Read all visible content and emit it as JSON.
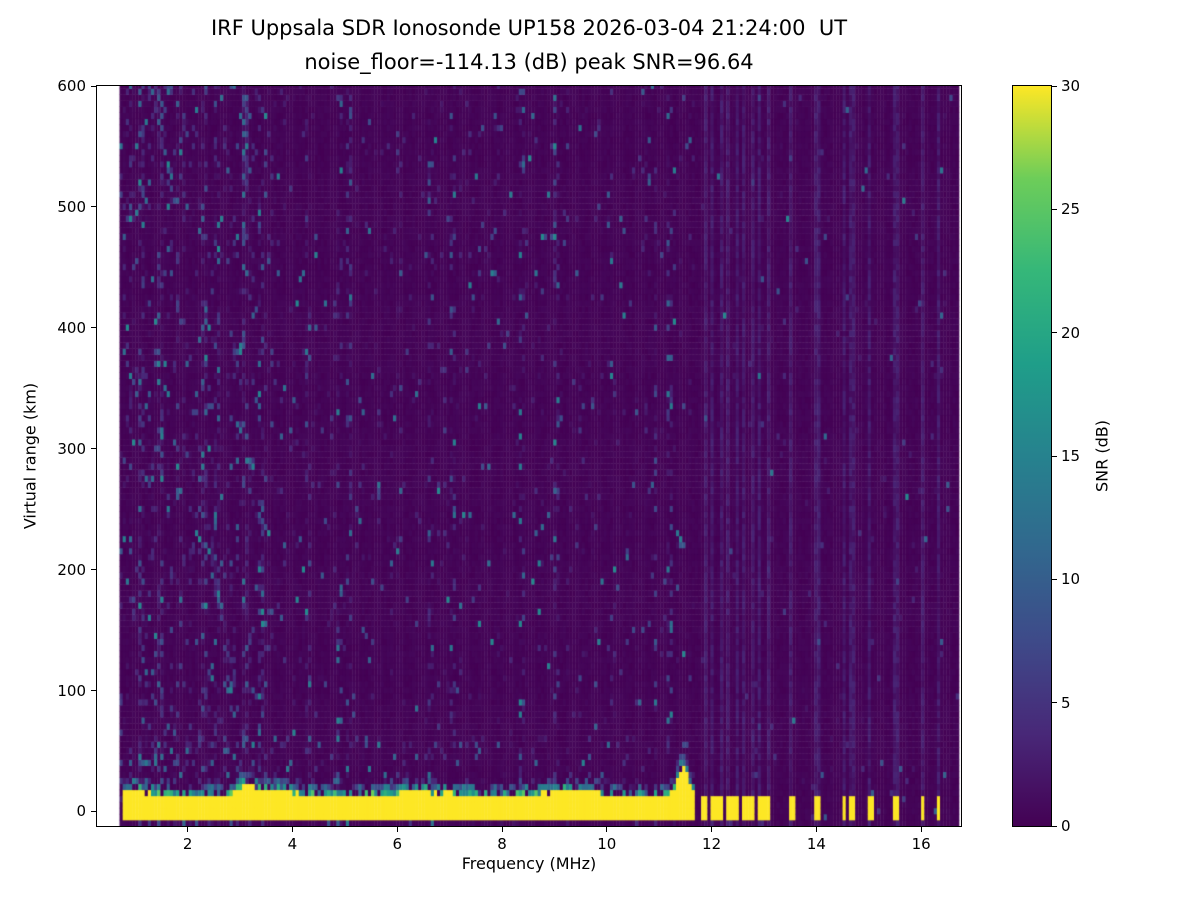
{
  "title": "IRF Uppsala SDR Ionosonde UP158 2026-03-04 21:24:00  UT",
  "subtitle": "noise_floor=-114.13 (dB) peak SNR=96.64",
  "station": "IRF Uppsala SDR Ionosonde UP158",
  "timestamp_ut": "2026-03-04 21:24:00",
  "noise_floor_db": -114.13,
  "peak_snr_db": 96.64,
  "chart_data": {
    "type": "heatmap",
    "title": "IRF Uppsala SDR Ionosonde UP158 2026-03-04 21:24:00  UT",
    "subtitle": "noise_floor=-114.13 (dB) peak SNR=96.64",
    "xlabel": "Frequency (MHz)",
    "ylabel": "Virtual range (km)",
    "xlim": [
      0.27,
      16.76
    ],
    "ylim": [
      -12,
      600
    ],
    "xticks": [
      2,
      4,
      6,
      8,
      10,
      12,
      14,
      16
    ],
    "yticks": [
      0,
      100,
      200,
      300,
      400,
      500,
      600
    ],
    "grid": false,
    "legend": "none",
    "colorbar": {
      "label": "SNR (dB)",
      "min": 0,
      "max": 30,
      "ticks": [
        0,
        5,
        10,
        15,
        20,
        25,
        30
      ],
      "colormap": "viridis",
      "position": "right"
    },
    "mesh": {
      "f_start": 0.7,
      "f_end": 16.68,
      "f_step": 0.06,
      "r_start": -12,
      "r_end": 600,
      "r_step": 5
    },
    "features": {
      "ground_return_band": {
        "f_start": 0.75,
        "f_end": 11.65,
        "r_min_km": -11,
        "r_top_km": 12,
        "snr_db": 30
      },
      "band_plumes": [
        {
          "f_mhz": 3.1,
          "halfwidth_mhz": 0.18,
          "extra_km": 8
        },
        {
          "f_mhz": 11.42,
          "halfwidth_mhz": 0.14,
          "extra_km": 22
        }
      ],
      "hf_blips_mhz": [
        11.85,
        12.0,
        12.15,
        12.3,
        12.45,
        12.6,
        12.75,
        12.9,
        13.05,
        13.5,
        14.0,
        14.5,
        14.65,
        15.0,
        15.5,
        16.0,
        16.3
      ],
      "blip_halfwidth_mhz": 0.05,
      "blip_r_range_km": [
        -11,
        9
      ],
      "noise_streaks_mhz": [
        1.12,
        1.45,
        2.3,
        2.52,
        3.1,
        3.35,
        4.3,
        4.85,
        5.05,
        6.6,
        7.05,
        8.35,
        9.0,
        10.9,
        11.2
      ],
      "diagonal_echo_traces": [
        {
          "f_start": 1.75,
          "f_end": 2.75,
          "r_at_start_km": 430,
          "slope_km_per_mhz": -310
        },
        {
          "f_start": 1.95,
          "f_end": 2.9,
          "r_at_start_km": 310,
          "slope_km_per_mhz": -220
        }
      ],
      "high_altitude_streak": {
        "f_mhz": 3.1,
        "r_above_km": 470,
        "boost": 0.45
      },
      "speckle_density": {
        "low_band": 0.15,
        "mid_band": 0.055,
        "high_band": 0.018,
        "low_mid_boundary_mhz": 3.6,
        "mid_high_boundary_mhz": 11.65,
        "bottom_boost_below_km": 60,
        "bottom_boost_factor": 1.9
      },
      "background_snr_db": 0.6,
      "speckle_max_db": 16
    }
  },
  "colormap_stops": [
    [
      68,
      1,
      84
    ],
    [
      72,
      40,
      120
    ],
    [
      62,
      74,
      137
    ],
    [
      49,
      104,
      142
    ],
    [
      38,
      130,
      142
    ],
    [
      31,
      158,
      137
    ],
    [
      53,
      183,
      121
    ],
    [
      109,
      205,
      89
    ],
    [
      253,
      231,
      37
    ]
  ]
}
